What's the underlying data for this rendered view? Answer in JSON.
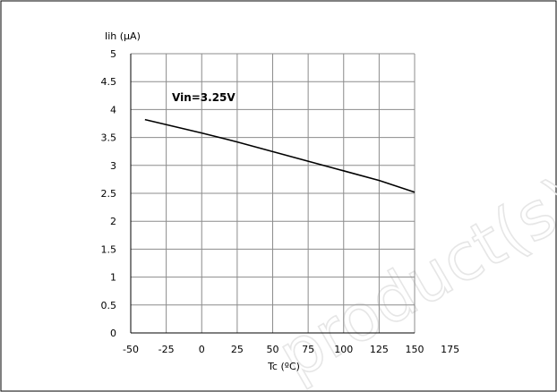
{
  "watermark": "product(s)",
  "chart_data": {
    "type": "line",
    "title": "",
    "xlabel": "Tc (ºC)",
    "ylabel": "Iih (µA)",
    "xlim": [
      -50,
      175
    ],
    "ylim": [
      0,
      5
    ],
    "xticks": [
      -50,
      -25,
      0,
      25,
      50,
      75,
      100,
      125,
      150,
      175
    ],
    "yticks": [
      0,
      0.5,
      1,
      1.5,
      2,
      2.5,
      3,
      3.5,
      4,
      4.5,
      5
    ],
    "grid": true,
    "annotation": "Vin=3.25V",
    "series": [
      {
        "color": "#000000",
        "x": [
          -40,
          0,
          25,
          125,
          150
        ],
        "y": [
          3.82,
          3.58,
          3.42,
          2.73,
          2.52
        ]
      }
    ]
  }
}
